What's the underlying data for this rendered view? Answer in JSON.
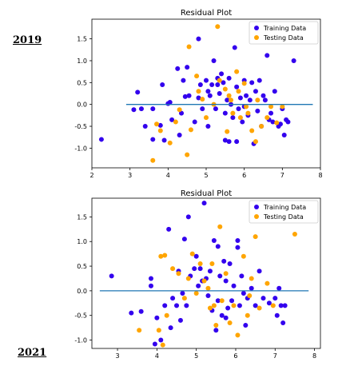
{
  "labels": {
    "year_top": "2019",
    "year_bottom": "2021"
  },
  "colors": {
    "training": "#3300ee",
    "testing": "#ffa500",
    "hline": "#1f77b4",
    "axis": "#000000",
    "legend_border": "#cccccc"
  },
  "chart_data": [
    {
      "type": "scatter",
      "title": "Residual Plot",
      "xlim": [
        2.0,
        8.0
      ],
      "ylim": [
        -1.45,
        1.95
      ],
      "xticks": [
        "2",
        "3",
        "4",
        "5",
        "6",
        "7",
        "8"
      ],
      "yticks": [
        "-1.0",
        "-0.5",
        "0.0",
        "0.5",
        "1.0",
        "1.5"
      ],
      "legend_position": "top-right",
      "hline": {
        "y": 0.0,
        "xmin": 2.9,
        "xmax": 7.8
      },
      "series": [
        {
          "name": "Training Data",
          "color": "#3300ee",
          "points": [
            [
              2.25,
              -0.8
            ],
            [
              3.2,
              0.28
            ],
            [
              3.1,
              -0.12
            ],
            [
              3.3,
              -0.1
            ],
            [
              3.4,
              -0.5
            ],
            [
              3.6,
              -0.1
            ],
            [
              3.6,
              -0.8
            ],
            [
              3.8,
              -0.48
            ],
            [
              3.85,
              0.45
            ],
            [
              3.9,
              -0.82
            ],
            [
              4.0,
              0.02
            ],
            [
              4.05,
              0.05
            ],
            [
              4.1,
              -0.35
            ],
            [
              4.25,
              0.82
            ],
            [
              4.3,
              -0.7
            ],
            [
              4.35,
              -0.2
            ],
            [
              4.4,
              0.55
            ],
            [
              4.45,
              0.18
            ],
            [
              4.5,
              0.85
            ],
            [
              4.55,
              0.2
            ],
            [
              4.7,
              -0.4
            ],
            [
              4.8,
              0.15
            ],
            [
              4.85,
              0.45
            ],
            [
              4.8,
              1.5
            ],
            [
              4.9,
              -0.1
            ],
            [
              5.0,
              0.55
            ],
            [
              5.05,
              -0.5
            ],
            [
              5.1,
              0.2
            ],
            [
              5.15,
              0.45
            ],
            [
              5.2,
              1.0
            ],
            [
              5.25,
              -0.1
            ],
            [
              5.3,
              0.6
            ],
            [
              5.35,
              0.25
            ],
            [
              5.4,
              0.7
            ],
            [
              5.45,
              0.5
            ],
            [
              5.5,
              -0.2
            ],
            [
              5.55,
              0.1
            ],
            [
              5.6,
              0.6
            ],
            [
              5.65,
              0.0
            ],
            [
              5.7,
              -0.3
            ],
            [
              5.75,
              1.3
            ],
            [
              5.8,
              0.4
            ],
            [
              5.85,
              -0.1
            ],
            [
              5.9,
              0.15
            ],
            [
              5.95,
              -0.4
            ],
            [
              6.0,
              -0.05
            ],
            [
              6.05,
              0.2
            ],
            [
              6.1,
              -0.25
            ],
            [
              6.15,
              0.1
            ],
            [
              6.2,
              0.5
            ],
            [
              6.25,
              -0.9
            ],
            [
              6.3,
              0.3
            ],
            [
              6.35,
              -0.15
            ],
            [
              6.4,
              0.55
            ],
            [
              6.45,
              -0.5
            ],
            [
              6.5,
              0.2
            ],
            [
              6.55,
              0.1
            ],
            [
              6.6,
              1.12
            ],
            [
              6.65,
              -0.35
            ],
            [
              6.7,
              -0.2
            ],
            [
              6.75,
              -0.4
            ],
            [
              6.8,
              0.3
            ],
            [
              6.9,
              -0.5
            ],
            [
              6.95,
              -0.45
            ],
            [
              7.0,
              -0.1
            ],
            [
              7.05,
              -0.7
            ],
            [
              7.1,
              -0.35
            ],
            [
              7.15,
              -0.4
            ],
            [
              7.3,
              1.0
            ],
            [
              5.5,
              -0.82
            ],
            [
              5.6,
              -0.85
            ],
            [
              5.3,
              0.45
            ],
            [
              5.05,
              0.3
            ],
            [
              5.8,
              -0.85
            ],
            [
              6.0,
              0.55
            ]
          ]
        },
        {
          "name": "Testing Data",
          "color": "#ffa500",
          "points": [
            [
              3.6,
              -1.28
            ],
            [
              3.7,
              -0.45
            ],
            [
              3.8,
              -0.6
            ],
            [
              4.05,
              -0.88
            ],
            [
              4.2,
              -0.4
            ],
            [
              4.3,
              -0.12
            ],
            [
              4.5,
              -1.15
            ],
            [
              4.55,
              1.32
            ],
            [
              4.6,
              -0.58
            ],
            [
              4.75,
              0.65
            ],
            [
              4.8,
              0.3
            ],
            [
              4.9,
              0.12
            ],
            [
              5.0,
              -0.3
            ],
            [
              5.2,
              0.0
            ],
            [
              5.3,
              1.78
            ],
            [
              5.35,
              0.55
            ],
            [
              5.5,
              0.35
            ],
            [
              5.55,
              -0.62
            ],
            [
              5.6,
              0.2
            ],
            [
              5.65,
              0.1
            ],
            [
              5.7,
              -0.2
            ],
            [
              5.8,
              0.75
            ],
            [
              5.85,
              0.3
            ],
            [
              5.9,
              -0.3
            ],
            [
              6.0,
              0.48
            ],
            [
              6.05,
              -0.05
            ],
            [
              6.2,
              -0.6
            ],
            [
              6.3,
              -0.85
            ],
            [
              6.35,
              0.1
            ],
            [
              6.45,
              -0.5
            ],
            [
              6.6,
              -0.3
            ],
            [
              6.7,
              -0.05
            ],
            [
              6.85,
              -0.42
            ],
            [
              7.0,
              -0.05
            ],
            [
              6.1,
              -0.2
            ]
          ]
        }
      ]
    },
    {
      "type": "scatter",
      "title": "Residual Plot",
      "xlim": [
        2.35,
        8.15
      ],
      "ylim": [
        -1.17,
        1.88
      ],
      "xticks": [
        "3",
        "4",
        "5",
        "6",
        "7",
        "8"
      ],
      "yticks": [
        "-1.0",
        "-0.5",
        "0.0",
        "0.5",
        "1.0",
        "1.5"
      ],
      "legend_position": "top-right",
      "hline": {
        "y": 0.0,
        "xmin": 2.55,
        "xmax": 7.85
      },
      "series": [
        {
          "name": "Training Data",
          "color": "#3300ee",
          "points": [
            [
              2.85,
              0.3
            ],
            [
              3.35,
              -0.45
            ],
            [
              3.6,
              -0.42
            ],
            [
              3.85,
              0.25
            ],
            [
              3.85,
              0.1
            ],
            [
              3.95,
              -1.08
            ],
            [
              4.0,
              -0.55
            ],
            [
              4.1,
              -1.0
            ],
            [
              4.2,
              -0.3
            ],
            [
              4.3,
              1.25
            ],
            [
              4.35,
              -0.75
            ],
            [
              4.4,
              -0.15
            ],
            [
              4.5,
              -0.3
            ],
            [
              4.55,
              0.4
            ],
            [
              4.6,
              -0.6
            ],
            [
              4.7,
              1.05
            ],
            [
              4.75,
              -0.3
            ],
            [
              4.8,
              1.5
            ],
            [
              4.85,
              0.3
            ],
            [
              4.95,
              0.45
            ],
            [
              5.0,
              0.7
            ],
            [
              5.05,
              0.1
            ],
            [
              5.1,
              0.45
            ],
            [
              5.15,
              0.2
            ],
            [
              5.2,
              1.78
            ],
            [
              5.25,
              0.25
            ],
            [
              5.3,
              -0.1
            ],
            [
              5.35,
              0.4
            ],
            [
              5.4,
              -0.4
            ],
            [
              5.45,
              1.02
            ],
            [
              5.5,
              -0.8
            ],
            [
              5.55,
              -0.2
            ],
            [
              5.6,
              0.3
            ],
            [
              5.65,
              -0.5
            ],
            [
              5.7,
              0.6
            ],
            [
              5.75,
              0.2
            ],
            [
              5.8,
              -0.35
            ],
            [
              5.85,
              0.55
            ],
            [
              5.9,
              -0.2
            ],
            [
              5.95,
              0.1
            ],
            [
              6.05,
              1.02
            ],
            [
              6.1,
              -0.3
            ],
            [
              6.15,
              0.3
            ],
            [
              6.2,
              -0.05
            ],
            [
              6.3,
              -0.15
            ],
            [
              6.4,
              0.05
            ],
            [
              6.5,
              -0.3
            ],
            [
              6.6,
              0.4
            ],
            [
              6.7,
              -0.15
            ],
            [
              6.85,
              -0.25
            ],
            [
              7.0,
              -0.15
            ],
            [
              7.05,
              -0.5
            ],
            [
              7.1,
              0.05
            ],
            [
              7.15,
              -0.3
            ],
            [
              7.2,
              -0.65
            ],
            [
              7.25,
              -0.3
            ],
            [
              6.05,
              0.88
            ],
            [
              5.55,
              0.9
            ],
            [
              5.75,
              -0.55
            ],
            [
              6.25,
              -0.7
            ],
            [
              4.65,
              -0.05
            ]
          ]
        },
        {
          "name": "Testing Data",
          "color": "#ffa500",
          "points": [
            [
              3.55,
              -0.8
            ],
            [
              4.05,
              -0.8
            ],
            [
              4.1,
              0.7
            ],
            [
              4.2,
              0.72
            ],
            [
              4.15,
              -1.1
            ],
            [
              4.25,
              -0.5
            ],
            [
              4.4,
              0.45
            ],
            [
              4.55,
              0.35
            ],
            [
              4.7,
              -0.15
            ],
            [
              4.8,
              0.25
            ],
            [
              4.9,
              0.75
            ],
            [
              5.0,
              -0.05
            ],
            [
              5.1,
              0.55
            ],
            [
              5.2,
              0.2
            ],
            [
              5.35,
              -0.35
            ],
            [
              5.4,
              0.55
            ],
            [
              5.45,
              -0.3
            ],
            [
              5.5,
              -0.7
            ],
            [
              5.6,
              1.3
            ],
            [
              5.65,
              -0.2
            ],
            [
              5.75,
              0.35
            ],
            [
              5.85,
              -0.65
            ],
            [
              5.95,
              -0.3
            ],
            [
              6.05,
              -0.9
            ],
            [
              6.2,
              0.7
            ],
            [
              6.3,
              -0.5
            ],
            [
              6.35,
              -0.1
            ],
            [
              6.5,
              1.1
            ],
            [
              6.6,
              -0.35
            ],
            [
              6.8,
              0.15
            ],
            [
              6.95,
              -0.3
            ],
            [
              7.5,
              1.15
            ],
            [
              5.3,
              0.05
            ],
            [
              6.4,
              0.25
            ]
          ]
        }
      ]
    }
  ]
}
